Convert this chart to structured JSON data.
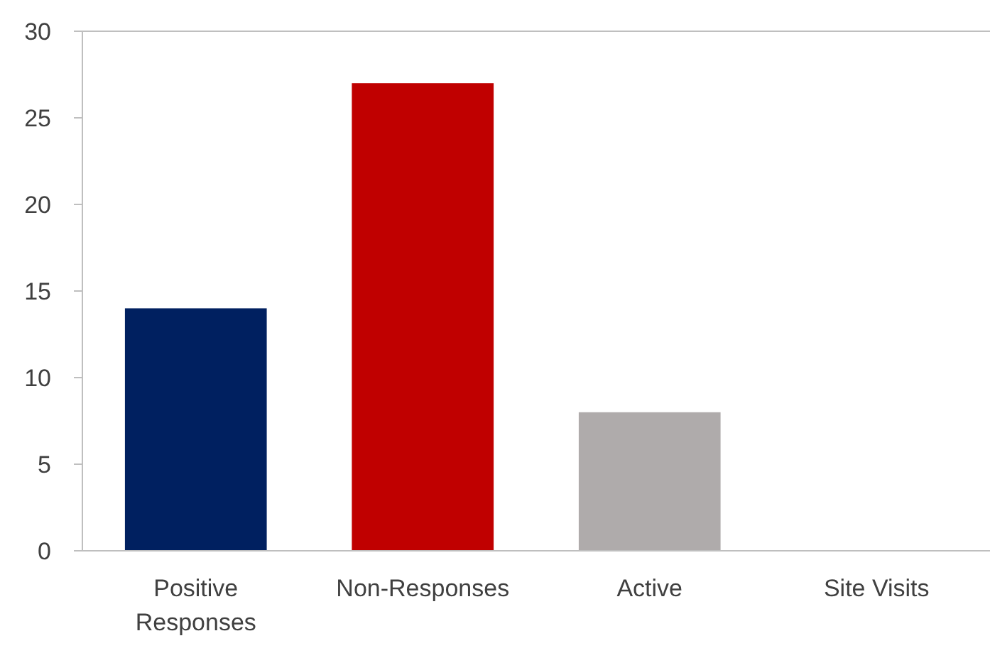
{
  "chart_data": {
    "type": "bar",
    "categories": [
      "Positive Responses",
      "Non-Responses",
      "Active",
      "Site Visits"
    ],
    "values": [
      14,
      27,
      8,
      0
    ],
    "colors": [
      "#002060",
      "#c00000",
      "#afabab",
      "#afabab"
    ],
    "ylim": [
      0,
      30
    ],
    "yticks": [
      0,
      5,
      10,
      15,
      20,
      25,
      30
    ],
    "grid": false
  }
}
